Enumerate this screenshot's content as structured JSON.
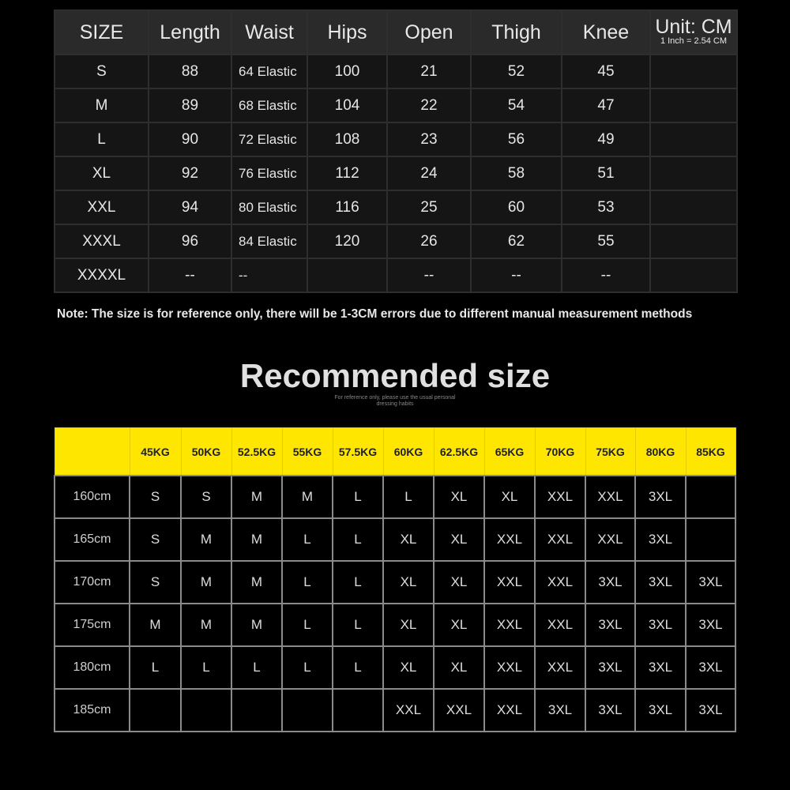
{
  "size_chart": {
    "headers": [
      "SIZE",
      "Length",
      "Waist",
      "Hips",
      "Open",
      "Thigh",
      "Knee"
    ],
    "unit_label": "Unit: CM",
    "unit_conversion": "1 Inch = 2.54 CM",
    "rows": [
      [
        "S",
        "88",
        "64 Elastic",
        "100",
        "21",
        "52",
        "45"
      ],
      [
        "M",
        "89",
        "68 Elastic",
        "104",
        "22",
        "54",
        "47"
      ],
      [
        "L",
        "90",
        "72 Elastic",
        "108",
        "23",
        "56",
        "49"
      ],
      [
        "XL",
        "92",
        "76 Elastic",
        "112",
        "24",
        "58",
        "51"
      ],
      [
        "XXL",
        "94",
        "80 Elastic",
        "116",
        "25",
        "60",
        "53"
      ],
      [
        "XXXL",
        "96",
        "84 Elastic",
        "120",
        "26",
        "62",
        "55"
      ],
      [
        "XXXXL",
        "--",
        "--",
        "",
        "--",
        "--",
        "--"
      ]
    ],
    "note": "Note: The size is for reference only, there will be 1-3CM errors due to different manual measurement methods"
  },
  "recommended": {
    "title": "Recommended size",
    "subtitle_line1": "For reference only, please use the usual personal",
    "subtitle_line2": "dressing habits",
    "weights": [
      "45KG",
      "50KG",
      "52.5KG",
      "55KG",
      "57.5KG",
      "60KG",
      "62.5KG",
      "65KG",
      "70KG",
      "75KG",
      "80KG",
      "85KG"
    ],
    "rows": [
      {
        "height": "160cm",
        "sizes": [
          "S",
          "S",
          "M",
          "M",
          "L",
          "L",
          "XL",
          "XL",
          "XXL",
          "XXL",
          "3XL",
          ""
        ]
      },
      {
        "height": "165cm",
        "sizes": [
          "S",
          "M",
          "M",
          "L",
          "L",
          "XL",
          "XL",
          "XXL",
          "XXL",
          "XXL",
          "3XL",
          ""
        ]
      },
      {
        "height": "170cm",
        "sizes": [
          "S",
          "M",
          "M",
          "L",
          "L",
          "XL",
          "XL",
          "XXL",
          "XXL",
          "3XL",
          "3XL",
          "3XL"
        ]
      },
      {
        "height": "175cm",
        "sizes": [
          "M",
          "M",
          "M",
          "L",
          "L",
          "XL",
          "XL",
          "XXL",
          "XXL",
          "3XL",
          "3XL",
          "3XL"
        ]
      },
      {
        "height": "180cm",
        "sizes": [
          "L",
          "L",
          "L",
          "L",
          "L",
          "XL",
          "XL",
          "XXL",
          "XXL",
          "3XL",
          "3XL",
          "3XL"
        ]
      },
      {
        "height": "185cm",
        "sizes": [
          "",
          "",
          "",
          "",
          "",
          "XXL",
          "XXL",
          "XXL",
          "3XL",
          "3XL",
          "3XL",
          "3XL"
        ]
      }
    ],
    "header_color": "#ffe600"
  }
}
